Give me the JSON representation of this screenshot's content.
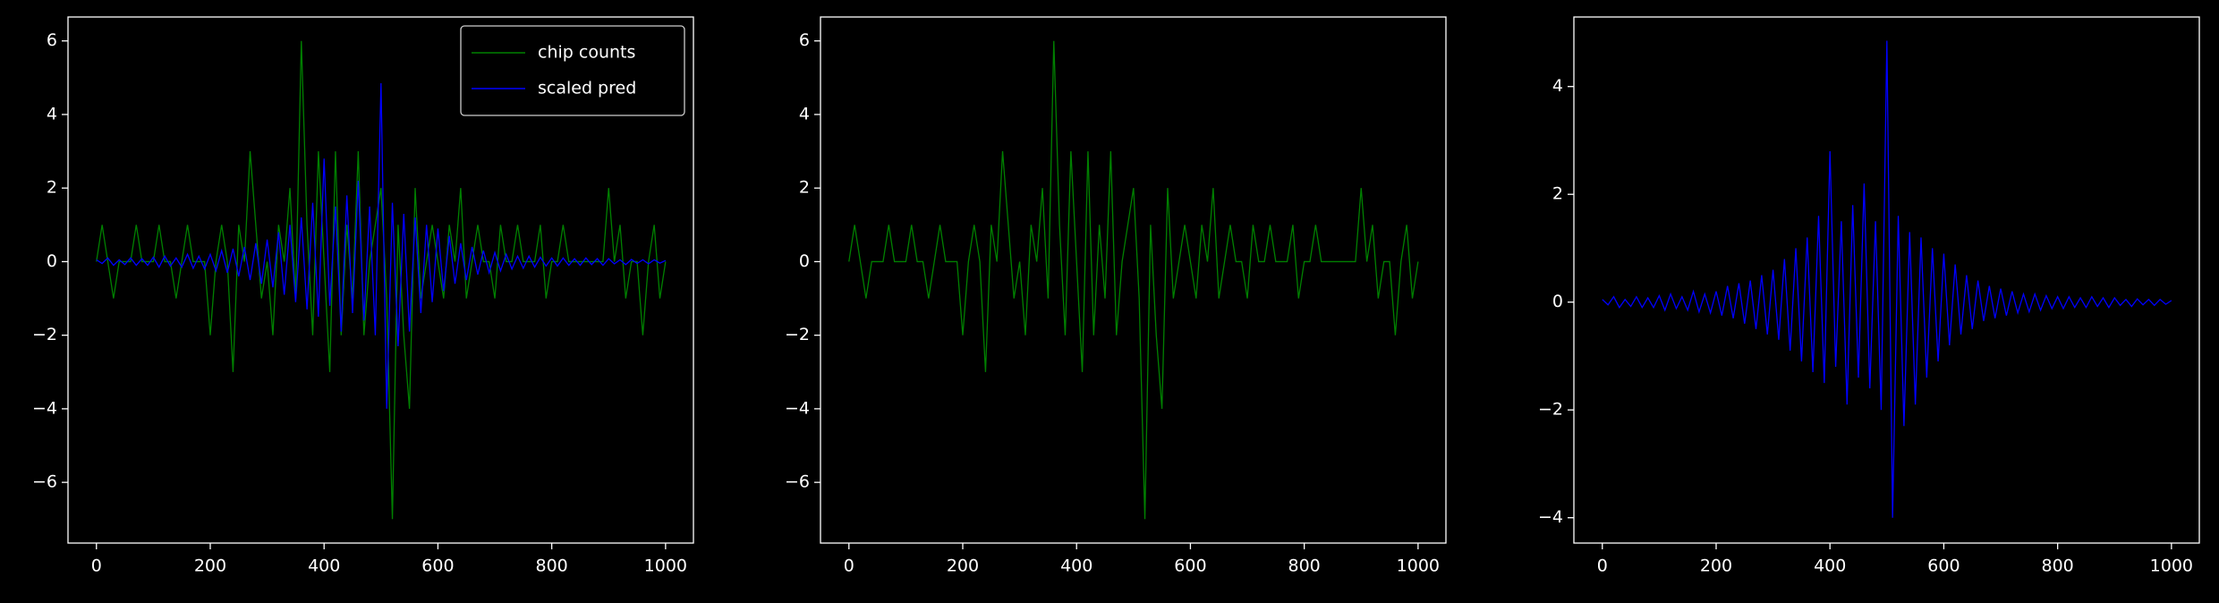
{
  "chart_data": [
    {
      "type": "line",
      "legend": "upper right",
      "x": [
        0,
        10,
        20,
        30,
        40,
        50,
        60,
        70,
        80,
        90,
        100,
        110,
        120,
        130,
        140,
        150,
        160,
        170,
        180,
        190,
        200,
        210,
        220,
        230,
        240,
        250,
        260,
        270,
        280,
        290,
        300,
        310,
        320,
        330,
        340,
        350,
        360,
        370,
        380,
        390,
        400,
        410,
        420,
        430,
        440,
        450,
        460,
        470,
        480,
        490,
        500,
        510,
        520,
        530,
        540,
        550,
        560,
        570,
        580,
        590,
        600,
        610,
        620,
        630,
        640,
        650,
        660,
        670,
        680,
        690,
        700,
        710,
        720,
        730,
        740,
        750,
        760,
        770,
        780,
        790,
        800,
        810,
        820,
        830,
        840,
        850,
        860,
        870,
        880,
        890,
        900,
        910,
        920,
        930,
        940,
        950,
        960,
        970,
        980,
        990,
        1000
      ],
      "series": [
        {
          "name": "chip counts",
          "color": "#008000",
          "values": [
            0,
            1,
            0,
            -1,
            0,
            0,
            0,
            1,
            0,
            0,
            0,
            1,
            0,
            0,
            -1,
            0,
            1,
            0,
            0,
            0,
            -2,
            0,
            1,
            0,
            -3,
            1,
            0,
            3,
            1,
            -1,
            0,
            -2,
            1,
            0,
            2,
            -1,
            6,
            1,
            -2,
            3,
            0,
            -3,
            3,
            -2,
            1,
            -1,
            3,
            -2,
            0,
            1,
            2,
            -1,
            -7,
            1,
            -2,
            -4,
            2,
            -1,
            0,
            1,
            0,
            -1,
            1,
            0,
            2,
            -1,
            0,
            1,
            0,
            0,
            -1,
            1,
            0,
            0,
            1,
            0,
            0,
            0,
            1,
            -1,
            0,
            0,
            1,
            0,
            0,
            0,
            0,
            0,
            0,
            0,
            2,
            0,
            1,
            -1,
            0,
            0,
            -2,
            0,
            1,
            -1,
            0
          ]
        },
        {
          "name": "scaled pred",
          "color": "#0000ff",
          "values": [
            0.05,
            -0.05,
            0.1,
            -0.1,
            0.05,
            -0.08,
            0.1,
            -0.1,
            0.08,
            -0.1,
            0.12,
            -0.15,
            0.15,
            -0.12,
            0.1,
            -0.15,
            0.2,
            -0.18,
            0.15,
            -0.2,
            0.2,
            -0.25,
            0.3,
            -0.3,
            0.35,
            -0.4,
            0.4,
            -0.5,
            0.5,
            -0.6,
            0.6,
            -0.7,
            0.8,
            -0.9,
            1.0,
            -1.1,
            1.2,
            -1.3,
            1.6,
            -1.5,
            2.8,
            -1.2,
            1.5,
            -1.9,
            1.8,
            -1.4,
            2.2,
            -1.6,
            1.5,
            -2.0,
            4.85,
            -4.0,
            1.6,
            -2.3,
            1.3,
            -1.9,
            1.2,
            -1.4,
            1.0,
            -1.1,
            0.9,
            -0.8,
            0.7,
            -0.6,
            0.5,
            -0.5,
            0.4,
            -0.35,
            0.3,
            -0.3,
            0.25,
            -0.25,
            0.2,
            -0.2,
            0.15,
            -0.18,
            0.15,
            -0.15,
            0.12,
            -0.12,
            0.1,
            -0.12,
            0.1,
            -0.1,
            0.08,
            -0.1,
            0.1,
            -0.08,
            0.08,
            -0.1,
            0.08,
            -0.06,
            0.05,
            -0.08,
            0.06,
            -0.05,
            0.05,
            -0.06,
            0.05,
            -0.04,
            0.03
          ]
        }
      ],
      "xlim": [
        -49.95,
        1048.95
      ],
      "xticks": [
        0,
        200,
        400,
        600,
        800,
        1000
      ],
      "ylim": [
        -7.65,
        6.65
      ],
      "yticks": [
        {
          "value": -6,
          "label": "−6"
        },
        {
          "value": -4,
          "label": "−4"
        },
        {
          "value": -2,
          "label": "−2"
        },
        0,
        2,
        4,
        6
      ]
    },
    {
      "type": "line",
      "x": [
        0,
        10,
        20,
        30,
        40,
        50,
        60,
        70,
        80,
        90,
        100,
        110,
        120,
        130,
        140,
        150,
        160,
        170,
        180,
        190,
        200,
        210,
        220,
        230,
        240,
        250,
        260,
        270,
        280,
        290,
        300,
        310,
        320,
        330,
        340,
        350,
        360,
        370,
        380,
        390,
        400,
        410,
        420,
        430,
        440,
        450,
        460,
        470,
        480,
        490,
        500,
        510,
        520,
        530,
        540,
        550,
        560,
        570,
        580,
        590,
        600,
        610,
        620,
        630,
        640,
        650,
        660,
        670,
        680,
        690,
        700,
        710,
        720,
        730,
        740,
        750,
        760,
        770,
        780,
        790,
        800,
        810,
        820,
        830,
        840,
        850,
        860,
        870,
        880,
        890,
        900,
        910,
        920,
        930,
        940,
        950,
        960,
        970,
        980,
        990,
        1000
      ],
      "series": [
        {
          "color": "#008000",
          "values": [
            0,
            1,
            0,
            -1,
            0,
            0,
            0,
            1,
            0,
            0,
            0,
            1,
            0,
            0,
            -1,
            0,
            1,
            0,
            0,
            0,
            -2,
            0,
            1,
            0,
            -3,
            1,
            0,
            3,
            1,
            -1,
            0,
            -2,
            1,
            0,
            2,
            -1,
            6,
            1,
            -2,
            3,
            0,
            -3,
            3,
            -2,
            1,
            -1,
            3,
            -2,
            0,
            1,
            2,
            -1,
            -7,
            1,
            -2,
            -4,
            2,
            -1,
            0,
            1,
            0,
            -1,
            1,
            0,
            2,
            -1,
            0,
            1,
            0,
            0,
            -1,
            1,
            0,
            0,
            1,
            0,
            0,
            0,
            1,
            -1,
            0,
            0,
            1,
            0,
            0,
            0,
            0,
            0,
            0,
            0,
            2,
            0,
            1,
            -1,
            0,
            0,
            -2,
            0,
            1,
            -1,
            0
          ]
        }
      ],
      "xlim": [
        -49.95,
        1048.95
      ],
      "xticks": [
        0,
        200,
        400,
        600,
        800,
        1000
      ],
      "ylim": [
        -7.65,
        6.65
      ],
      "yticks": [
        {
          "value": -6,
          "label": "−6"
        },
        {
          "value": -4,
          "label": "−4"
        },
        {
          "value": -2,
          "label": "−2"
        },
        0,
        2,
        4,
        6
      ]
    },
    {
      "type": "line",
      "x": [
        0,
        10,
        20,
        30,
        40,
        50,
        60,
        70,
        80,
        90,
        100,
        110,
        120,
        130,
        140,
        150,
        160,
        170,
        180,
        190,
        200,
        210,
        220,
        230,
        240,
        250,
        260,
        270,
        280,
        290,
        300,
        310,
        320,
        330,
        340,
        350,
        360,
        370,
        380,
        390,
        400,
        410,
        420,
        430,
        440,
        450,
        460,
        470,
        480,
        490,
        500,
        510,
        520,
        530,
        540,
        550,
        560,
        570,
        580,
        590,
        600,
        610,
        620,
        630,
        640,
        650,
        660,
        670,
        680,
        690,
        700,
        710,
        720,
        730,
        740,
        750,
        760,
        770,
        780,
        790,
        800,
        810,
        820,
        830,
        840,
        850,
        860,
        870,
        880,
        890,
        900,
        910,
        920,
        930,
        940,
        950,
        960,
        970,
        980,
        990,
        1000
      ],
      "series": [
        {
          "color": "#0000ff",
          "values": [
            0.05,
            -0.05,
            0.1,
            -0.1,
            0.05,
            -0.08,
            0.1,
            -0.1,
            0.08,
            -0.1,
            0.12,
            -0.15,
            0.15,
            -0.12,
            0.1,
            -0.15,
            0.2,
            -0.18,
            0.15,
            -0.2,
            0.2,
            -0.25,
            0.3,
            -0.3,
            0.35,
            -0.4,
            0.4,
            -0.5,
            0.5,
            -0.6,
            0.6,
            -0.7,
            0.8,
            -0.9,
            1.0,
            -1.1,
            1.2,
            -1.3,
            1.6,
            -1.5,
            2.8,
            -1.2,
            1.5,
            -1.9,
            1.8,
            -1.4,
            2.2,
            -1.6,
            1.5,
            -2.0,
            4.85,
            -4.0,
            1.6,
            -2.3,
            1.3,
            -1.9,
            1.2,
            -1.4,
            1.0,
            -1.1,
            0.9,
            -0.8,
            0.7,
            -0.6,
            0.5,
            -0.5,
            0.4,
            -0.35,
            0.3,
            -0.3,
            0.25,
            -0.25,
            0.2,
            -0.2,
            0.15,
            -0.18,
            0.15,
            -0.15,
            0.12,
            -0.12,
            0.1,
            -0.12,
            0.1,
            -0.1,
            0.08,
            -0.1,
            0.1,
            -0.08,
            0.08,
            -0.1,
            0.08,
            -0.06,
            0.05,
            -0.08,
            0.06,
            -0.05,
            0.05,
            -0.06,
            0.05,
            -0.04,
            0.03
          ]
        }
      ],
      "xlim": [
        -49.95,
        1048.95
      ],
      "xticks": [
        0,
        200,
        400,
        600,
        800,
        1000
      ],
      "ylim": [
        -4.47,
        5.29
      ],
      "yticks": [
        {
          "value": -4,
          "label": "−4"
        },
        {
          "value": -2,
          "label": "−2"
        },
        0,
        2,
        4
      ]
    }
  ]
}
